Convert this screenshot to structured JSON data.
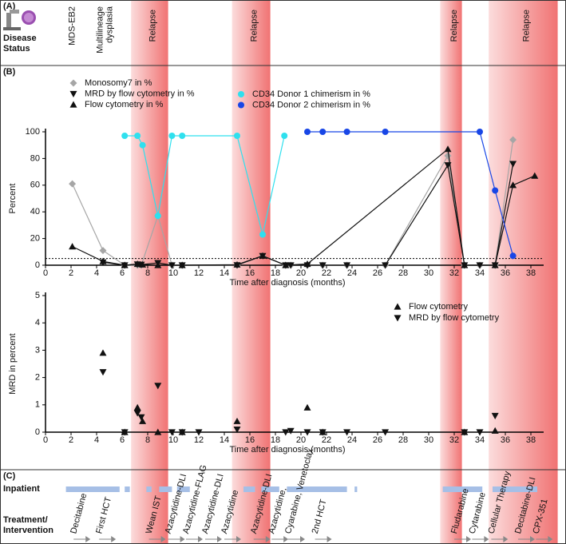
{
  "panels": {
    "a": "(A)",
    "b": "(B)",
    "c": "(C)"
  },
  "disease_status_label": [
    "Disease",
    "Status"
  ],
  "disease_status": [
    {
      "label": [
        "MDS-EB2"
      ],
      "time": 2.1,
      "color": "#e0241b"
    },
    {
      "label": [
        "Multilineage",
        "dysplasia"
      ],
      "time": 4.3,
      "color": "#111111"
    }
  ],
  "relapse_periods": [
    {
      "label": "Relapse",
      "start": 6.7,
      "end": 9.6
    },
    {
      "label": "Relapse",
      "start": 14.6,
      "end": 17.6
    },
    {
      "label": "Relapse",
      "start": 30.9,
      "end": 32.6
    },
    {
      "label": "Relapse",
      "start": 34.7,
      "end": 40.1
    }
  ],
  "chart_data": [
    {
      "type": "line",
      "ylabel": "Percent",
      "xlabel": "Time after diagnosis (months)",
      "xlim": [
        0,
        39
      ],
      "ylim": [
        0,
        100
      ],
      "xticks": [
        0,
        2,
        4,
        6,
        8,
        10,
        12,
        14,
        16,
        18,
        20,
        22,
        24,
        26,
        28,
        30,
        32,
        34,
        36,
        38
      ],
      "yticks": [
        0,
        20,
        40,
        60,
        80,
        100
      ],
      "reference_line": 5,
      "series": [
        {
          "name": "Monosomy7 in %",
          "color": "#a6a6a6",
          "marker": "diamond",
          "x": [
            2.1,
            4.5,
            6.2,
            7.2,
            7.5,
            8.8,
            9.9,
            10.7,
            15,
            17,
            18.8,
            19.2,
            20.5,
            21.7,
            23.6,
            26.6,
            31.5,
            32.8,
            34,
            35.2,
            36.6
          ],
          "values": [
            61,
            11,
            0,
            0,
            0,
            37,
            0,
            0,
            0,
            7,
            0,
            0,
            0,
            0,
            0,
            0,
            82,
            0,
            0,
            0,
            94
          ]
        },
        {
          "name": "MRD by flow cytometry in %",
          "color": "#111111",
          "marker": "down",
          "x": [
            4.5,
            6.2,
            7.2,
            7.5,
            8.8,
            9.9,
            10.7,
            15,
            17,
            18.8,
            19.2,
            20.5,
            21.7,
            23.6,
            26.6,
            31.5,
            32.8,
            34,
            35.2,
            36.6
          ],
          "values": [
            2.2,
            0,
            0.7,
            0.5,
            1.7,
            0,
            0,
            0.1,
            7,
            0,
            0,
            0,
            0,
            0,
            0,
            75,
            0,
            0,
            0,
            76
          ]
        },
        {
          "name": "Flow cytometry in %",
          "color": "#111111",
          "marker": "up",
          "x": [
            2.1,
            4.5,
            6.2,
            7.2,
            7.6,
            8.8,
            10.7,
            15,
            17,
            18.8,
            20.5,
            31.5,
            32.8,
            35.2,
            36.6,
            38.3
          ],
          "values": [
            14,
            2.9,
            0,
            0.9,
            0.4,
            0,
            0,
            0.4,
            7,
            0,
            0.9,
            87,
            0,
            0,
            60,
            67
          ]
        },
        {
          "name": "CD34 Donor 1 chimerism in %",
          "color": "#2fe0ee",
          "marker": "circle",
          "x": [
            6.2,
            7.2,
            7.6,
            8.8,
            9.9,
            10.7,
            15,
            17,
            18.7
          ],
          "values": [
            97,
            97,
            90,
            37,
            97,
            97,
            97,
            23,
            97
          ]
        },
        {
          "name": "CD34 Donor 2 chimerism in %",
          "color": "#1846e6",
          "marker": "circle",
          "x": [
            20.5,
            21.7,
            23.6,
            26.6,
            34,
            35.2,
            36.6
          ],
          "values": [
            100,
            100,
            100,
            100,
            100,
            56,
            7
          ]
        }
      ]
    },
    {
      "type": "scatter",
      "ylabel": "MRD in percent",
      "xlabel": "Time after diagnosis (months)",
      "xlim": [
        0,
        39
      ],
      "ylim": [
        0,
        5
      ],
      "xticks": [
        0,
        2,
        4,
        6,
        8,
        10,
        12,
        14,
        16,
        18,
        20,
        22,
        24,
        26,
        28,
        30,
        32,
        34,
        36,
        38
      ],
      "yticks": [
        0,
        1,
        2,
        3,
        4,
        5
      ],
      "series": [
        {
          "name": "Flow cytometry",
          "color": "#111111",
          "marker": "up",
          "x": [
            4.5,
            6.2,
            7.2,
            7.6,
            8.8,
            10.7,
            15,
            20.5,
            21.7,
            32.8,
            35.2
          ],
          "values": [
            2.9,
            0,
            0.9,
            0.4,
            0,
            0,
            0.4,
            0.9,
            0,
            0,
            0.05
          ]
        },
        {
          "name": "MRD by flow cytometry",
          "color": "#111111",
          "marker": "down",
          "x": [
            4.5,
            6.2,
            7.2,
            7.5,
            8.8,
            9.9,
            10.7,
            12,
            15,
            18.8,
            19.2,
            20.5,
            21.7,
            23.6,
            26.6,
            32.8,
            34,
            35.2
          ],
          "values": [
            2.2,
            0,
            0.7,
            0.55,
            1.7,
            0,
            0,
            0,
            0.1,
            0,
            0.05,
            0,
            0,
            0,
            0,
            0,
            0,
            0.6
          ]
        }
      ]
    }
  ],
  "inpatient": {
    "label": "Inpatient",
    "periods": [
      [
        1.6,
        5.8
      ],
      [
        6.2,
        6.6
      ],
      [
        7.9,
        8.3
      ],
      [
        8.9,
        9.9
      ],
      [
        10.3,
        11.3
      ],
      [
        15.5,
        16.4
      ],
      [
        16.9,
        18.3
      ],
      [
        18.9,
        23.6
      ],
      [
        24.2,
        24.4
      ],
      [
        31.1,
        34.2
      ],
      [
        35,
        38.5
      ]
    ]
  },
  "treatment": {
    "label": [
      "Treatment/",
      "Intervention"
    ],
    "items": [
      {
        "label": "Decitabine",
        "time": 2.2
      },
      {
        "label": "First HCT",
        "time": 4.2
      },
      {
        "label": "Wean IST",
        "time": 8.1
      },
      {
        "label": "Azacytidine-DLI",
        "time": 9.6
      },
      {
        "label": "Azacytidine-FLAG",
        "time": 11
      },
      {
        "label": "Azacytidine-DLI",
        "time": 12.5
      },
      {
        "label": "Azacytidine",
        "time": 14
      },
      {
        "label": "Azacytidine-DLI",
        "time": 16.3
      },
      {
        "label": "Azacytidine,",
        "time": 17.7
      },
      {
        "label": "Cyarabine, Venetoclax",
        "time": 19
      },
      {
        "label": "2nd HCT",
        "time": 21.1
      },
      {
        "label": "Fludarabine",
        "time": 32
      },
      {
        "label": "Cytarabine",
        "time": 33.4
      },
      {
        "label": "Cellular Therapy",
        "time": 34.9
      },
      {
        "label": "Decitabine-DLI",
        "time": 37
      },
      {
        "label": "CPX-351",
        "time": 38.4
      }
    ]
  }
}
